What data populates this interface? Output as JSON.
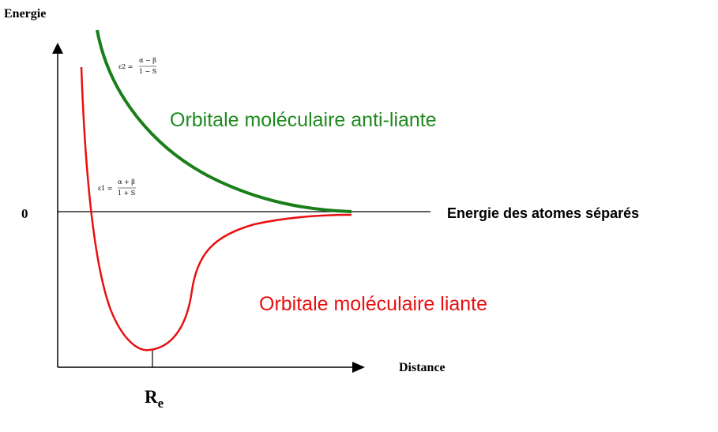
{
  "axes": {
    "y_label": "Energie",
    "zero_label": "0",
    "x_label": "Distance",
    "baseline_label": "Energie des atomes séparés",
    "re_label": {
      "main": "R",
      "sub": "e"
    }
  },
  "curves": [
    {
      "label": "Orbitale moléculaire anti-liante",
      "formula": {
        "lhs": "ε2 =",
        "numerator": "α − β",
        "denominator": "1 − S"
      }
    },
    {
      "label": "Orbitale moléculaire liante",
      "formula": {
        "lhs": "ε1 =",
        "numerator": "α + β",
        "denominator": "1 + S"
      }
    }
  ]
}
